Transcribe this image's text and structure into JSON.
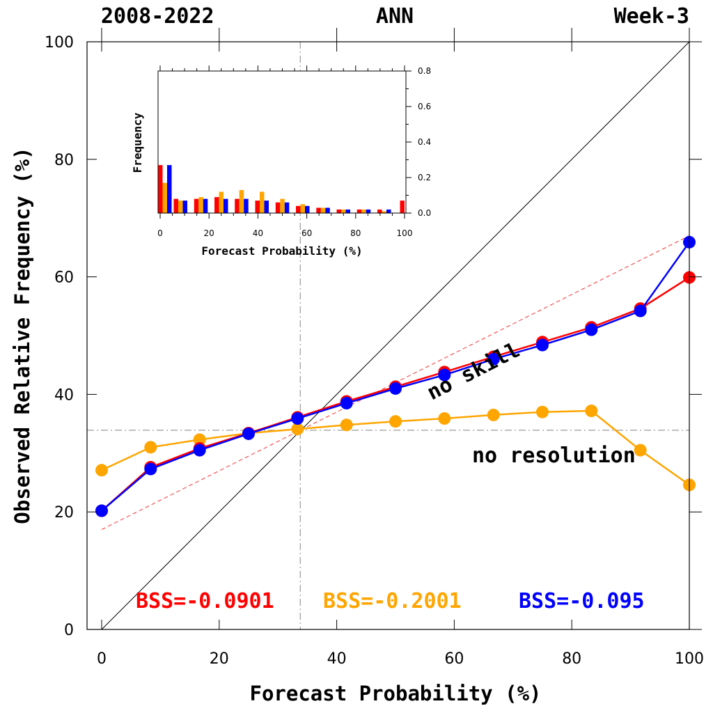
{
  "chart_data": {
    "type": "line",
    "header": {
      "left": "2008-2022",
      "center": "ANN",
      "right": "Week-3"
    },
    "xlabel": "Forecast Probability (%)",
    "ylabel": "Observed Relative Frequency (%)",
    "xlim": [
      0,
      100
    ],
    "ylim": [
      0,
      100
    ],
    "xticks": [
      "0",
      "20",
      "40",
      "60",
      "80",
      "100"
    ],
    "yticks": [
      "0",
      "20",
      "40",
      "60",
      "80",
      "100"
    ],
    "reference_lines": {
      "perfect_reliability": {
        "x": [
          0,
          100
        ],
        "y": [
          0,
          100
        ]
      },
      "climatology_x": 33.8,
      "climatology_y": 33.9,
      "no_skill": {
        "x": [
          0,
          100
        ],
        "y": [
          17,
          67
        ],
        "color": "#ff0000"
      }
    },
    "annotations": {
      "no_skill": "no skill",
      "no_resolution": "no resolution"
    },
    "x": [
      0,
      8.33,
      16.67,
      25,
      33.33,
      41.67,
      50,
      58.33,
      66.67,
      75,
      83.33,
      91.67,
      100
    ],
    "series": [
      {
        "color": "#ff0000",
        "bss": "BSS=-0.0901",
        "values": [
          20.2,
          27.6,
          30.8,
          33.4,
          36.1,
          38.8,
          41.3,
          43.8,
          46.4,
          48.9,
          51.4,
          54.6,
          59.9
        ]
      },
      {
        "color": "#ffa500",
        "bss": "BSS=-0.2001",
        "values": [
          27.1,
          31.0,
          32.3,
          33.4,
          34.1,
          34.8,
          35.4,
          35.9,
          36.5,
          37.0,
          37.2,
          30.5,
          24.6
        ]
      },
      {
        "color": "#0000ff",
        "bss": "BSS=-0.095",
        "values": [
          20.2,
          27.3,
          30.5,
          33.3,
          35.9,
          38.5,
          41.0,
          43.3,
          46.0,
          48.4,
          51.0,
          54.2,
          65.9
        ]
      }
    ],
    "inset": {
      "type": "bar",
      "xlabel": "Forecast Probability (%)",
      "ylabel": "Frequency",
      "xlim": [
        0,
        100
      ],
      "ylim": [
        0,
        0.8
      ],
      "xticks": [
        "0",
        "20",
        "40",
        "60",
        "80",
        "100"
      ],
      "yticks": [
        "0.0",
        "0.2",
        "0.4",
        "0.6",
        "0.8"
      ],
      "bins": [
        0,
        8.33,
        16.67,
        25,
        33.33,
        41.67,
        50,
        58.33,
        66.67,
        75,
        83.33,
        91.67,
        100
      ],
      "series": [
        {
          "color": "#ff0000",
          "values": [
            0.27,
            0.08,
            0.08,
            0.09,
            0.08,
            0.07,
            0.06,
            0.04,
            0.03,
            0.02,
            0.02,
            0.02,
            0.07
          ]
        },
        {
          "color": "#ffa500",
          "values": [
            0.17,
            0.07,
            0.09,
            0.12,
            0.13,
            0.12,
            0.08,
            0.05,
            0.03,
            0.02,
            0.02,
            0.01,
            0.0
          ]
        },
        {
          "color": "#0000ff",
          "values": [
            0.27,
            0.07,
            0.08,
            0.08,
            0.08,
            0.07,
            0.06,
            0.04,
            0.03,
            0.02,
            0.02,
            0.02,
            0.0
          ]
        }
      ]
    }
  }
}
